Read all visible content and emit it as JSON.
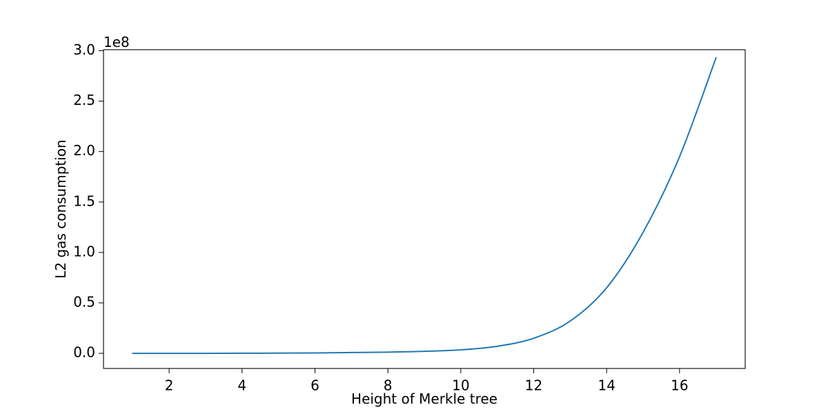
{
  "chart_data": {
    "type": "line",
    "title": "",
    "xlabel": "Height of Merkle tree",
    "ylabel": "L2 gas consumption",
    "y_scale_label": "1e8",
    "y_multiplier": 100000000,
    "xlim": [
      0.2,
      17.8
    ],
    "ylim": [
      -15000000,
      301000000
    ],
    "x_ticks": [
      2,
      4,
      6,
      8,
      10,
      12,
      14,
      16
    ],
    "x_tick_labels": [
      "2",
      "4",
      "6",
      "8",
      "10",
      "12",
      "14",
      "16"
    ],
    "y_ticks": [
      0,
      50000000,
      100000000,
      150000000,
      200000000,
      250000000,
      300000000
    ],
    "y_tick_labels": [
      "0.0",
      "0.5",
      "1.0",
      "1.5",
      "2.0",
      "2.5",
      "3.0"
    ],
    "grid": false,
    "legend": "none",
    "series": [
      {
        "color": "#1f77b4",
        "x": [
          1,
          2,
          3,
          4,
          5,
          6,
          7,
          8,
          9,
          10,
          11,
          12,
          13,
          14,
          15,
          16,
          17
        ],
        "y": [
          0,
          0,
          0,
          100000,
          200000,
          400000,
          800000,
          1200000,
          2000000,
          3500000,
          7000000,
          15000000,
          32000000,
          65000000,
          120000000,
          195000000,
          293000000
        ]
      }
    ]
  }
}
